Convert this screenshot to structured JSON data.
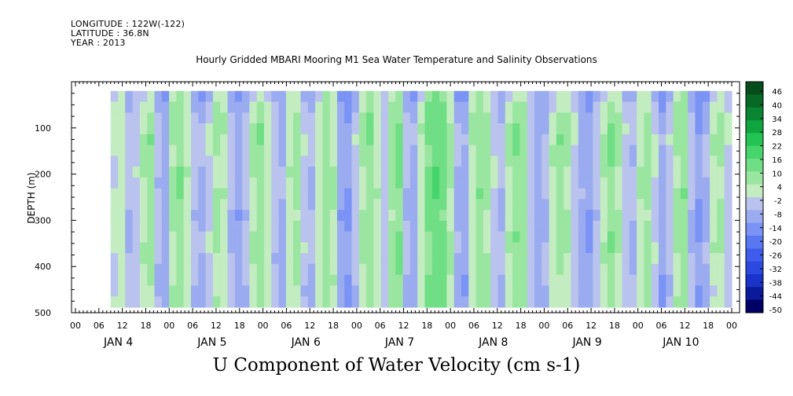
{
  "header": {
    "longitude": "LONGITUDE : 122W(-122)",
    "latitude": "LATITUDE : 36.8N",
    "year": "YEAR : 2013"
  },
  "chart_data": {
    "type": "heatmap",
    "title": "Hourly Gridded MBARI Mooring M1 Sea Water Temperature and Salinity Observations",
    "xlabel": "U Component of Water Velocity (cm s-1)",
    "ylabel": "DEPTH (m)",
    "ylim": [
      500,
      0
    ],
    "data_depth_range": [
      20,
      488
    ],
    "y_ticks": [
      100,
      200,
      300,
      400,
      500
    ],
    "y_tick_labels": [
      "100",
      "200",
      "300",
      "400",
      "500"
    ],
    "x_hour_labels": [
      "00",
      "06",
      "12",
      "18",
      "00",
      "06",
      "12",
      "18",
      "00",
      "06",
      "12",
      "18",
      "00",
      "06",
      "12",
      "18",
      "00",
      "06",
      "12",
      "18",
      "00",
      "06",
      "12",
      "18",
      "00",
      "06",
      "12",
      "18",
      "00"
    ],
    "day_labels": [
      {
        "text": "JAN  4",
        "hour_offset": 36
      },
      {
        "text": "JAN  5",
        "hour_offset": 60
      },
      {
        "text": "JAN  6",
        "hour_offset": 84
      },
      {
        "text": "JAN  7",
        "hour_offset": 108
      },
      {
        "text": "JAN  8",
        "hour_offset": 132
      },
      {
        "text": "JAN  9",
        "hour_offset": 156
      },
      {
        "text": "JAN 10",
        "hour_offset": 180
      }
    ],
    "x_range_hours": [
      0,
      168
    ],
    "data_start_hour": 9,
    "colorbar_levels": [
      -50,
      -44,
      -38,
      -32,
      -26,
      -20,
      -14,
      -8,
      -2,
      4,
      10,
      16,
      22,
      28,
      34,
      40,
      46
    ],
    "colorbar_labels": [
      "46",
      "40",
      "34",
      "28",
      "22",
      "16",
      "10",
      "4",
      "-2",
      "-8",
      "-14",
      "-20",
      "-26",
      "-32",
      "-38",
      "-44",
      "-50"
    ],
    "colormap": {
      "negative": [
        "#000066",
        "#0a1a9a",
        "#1a33c8",
        "#2c49e0",
        "#3f5cec",
        "#5a77f2",
        "#7b93f4",
        "#9aabf0",
        "#b9c3ee"
      ],
      "positive": [
        "#c3ecc0",
        "#9ae6a0",
        "#6fde85",
        "#46d46c",
        "#24c454",
        "#0fa53f",
        "#0a8632",
        "#086825",
        "#064d1b"
      ]
    },
    "column_profile_u_cm_s": [
      0,
      3,
      -6,
      -3,
      4,
      8,
      -5,
      -10,
      6,
      10,
      3,
      -4,
      -8,
      -2,
      6,
      4,
      -6,
      -10,
      -4,
      5,
      9,
      2,
      -5,
      -8,
      3,
      8,
      -3,
      -6,
      2,
      9,
      5,
      -10,
      -12,
      -4,
      6,
      10,
      4,
      -3,
      8,
      12,
      -5,
      -9,
      3,
      12,
      16,
      14,
      6,
      -8,
      -10,
      4,
      10,
      6,
      -2,
      -6,
      4,
      10,
      8,
      -4,
      -10,
      -6,
      3,
      8,
      6,
      -2,
      -8,
      -12,
      -4,
      4,
      10,
      6,
      -3,
      -6,
      4,
      8,
      -2,
      -10,
      -4,
      6,
      10,
      -6,
      -12,
      -8,
      3,
      6,
      -2
    ],
    "depth_profile_u_cm_s": [
      -6,
      -2,
      1,
      3,
      4,
      3,
      2,
      2,
      1,
      1,
      0,
      -1,
      0,
      1,
      2,
      1,
      0,
      -1,
      -2,
      -1
    ]
  }
}
